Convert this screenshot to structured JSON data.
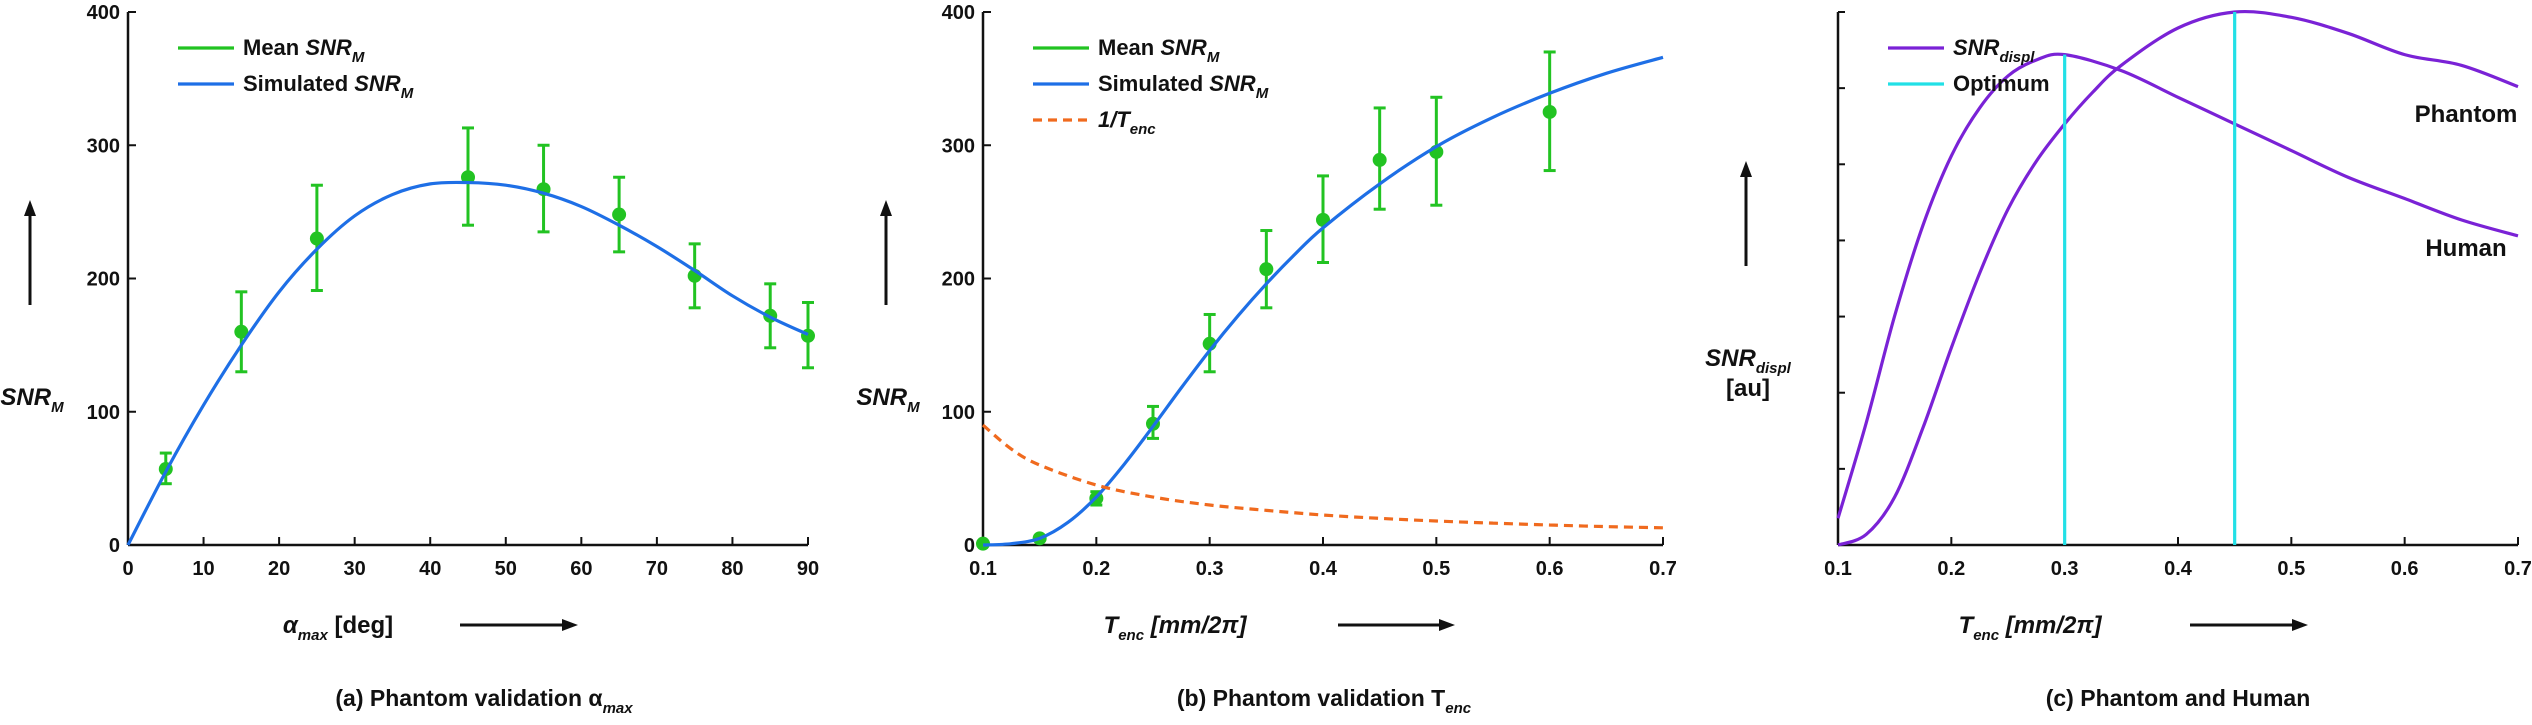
{
  "colors": {
    "measured": "#22c322",
    "simulated": "#1e6fe6",
    "inverse": "#f06a1e",
    "snr_displ": "#7a22d6",
    "optimum": "#22e0e6"
  },
  "chart_data": [
    {
      "type": "scatter",
      "caption": "(a) Phantom validation α",
      "caption_sub": "max",
      "xlabel_main": "α",
      "xlabel_sub": "max",
      "xlabel_rest": " [deg]",
      "ylabel_main": "SNR",
      "ylabel_sub": "M",
      "xlim": [
        0,
        90
      ],
      "ylim": [
        0,
        400
      ],
      "xticks": [
        0,
        10,
        20,
        30,
        40,
        50,
        60,
        70,
        80,
        90
      ],
      "yticks": [
        0,
        100,
        200,
        300,
        400
      ],
      "legend_position": "top-left",
      "series": [
        {
          "name": "Mean SNR",
          "name_sub": "M",
          "kind": "errorbar",
          "points": [
            {
              "x": 5,
              "y": 57,
              "lo": 46,
              "hi": 69
            },
            {
              "x": 15,
              "y": 160,
              "lo": 130,
              "hi": 190
            },
            {
              "x": 25,
              "y": 230,
              "lo": 191,
              "hi": 270
            },
            {
              "x": 45,
              "y": 276,
              "lo": 240,
              "hi": 313
            },
            {
              "x": 55,
              "y": 267,
              "lo": 235,
              "hi": 300
            },
            {
              "x": 65,
              "y": 248,
              "lo": 220,
              "hi": 276
            },
            {
              "x": 75,
              "y": 202,
              "lo": 178,
              "hi": 226
            },
            {
              "x": 85,
              "y": 172,
              "lo": 148,
              "hi": 196
            },
            {
              "x": 90,
              "y": 157,
              "lo": 133,
              "hi": 182
            }
          ]
        },
        {
          "name": "Simulated SNR",
          "name_sub": "M",
          "kind": "line",
          "x": [
            0,
            5,
            10,
            15,
            20,
            25,
            30,
            35,
            40,
            45,
            50,
            55,
            60,
            65,
            70,
            75,
            80,
            85,
            90
          ],
          "y": [
            0,
            55,
            105,
            150,
            190,
            222,
            247,
            263,
            271,
            272,
            270,
            264,
            254,
            240,
            224,
            206,
            187,
            171,
            158
          ]
        }
      ]
    },
    {
      "type": "scatter",
      "caption": "(b) Phantom validation T",
      "caption_sub": "enc",
      "xlabel_main": "T",
      "xlabel_sub": "enc",
      "xlabel_rest": " [mm/2π]",
      "ylabel_main": "SNR",
      "ylabel_sub": "M",
      "xlim": [
        0.1,
        0.7
      ],
      "ylim": [
        0,
        400
      ],
      "xticks": [
        "0.1",
        "0.2",
        "0.3",
        "0.4",
        "0.5",
        "0.6",
        "0.7"
      ],
      "yticks": [
        0,
        100,
        200,
        300,
        400
      ],
      "legend_position": "top-left",
      "series": [
        {
          "name": "Mean SNR",
          "name_sub": "M",
          "kind": "errorbar",
          "points": [
            {
              "x": 0.1,
              "y": 1,
              "lo": 1,
              "hi": 1
            },
            {
              "x": 0.15,
              "y": 5,
              "lo": 5,
              "hi": 5
            },
            {
              "x": 0.2,
              "y": 35,
              "lo": 30,
              "hi": 40
            },
            {
              "x": 0.25,
              "y": 91,
              "lo": 80,
              "hi": 104
            },
            {
              "x": 0.3,
              "y": 151,
              "lo": 130,
              "hi": 173
            },
            {
              "x": 0.35,
              "y": 207,
              "lo": 178,
              "hi": 236
            },
            {
              "x": 0.4,
              "y": 244,
              "lo": 212,
              "hi": 277
            },
            {
              "x": 0.45,
              "y": 289,
              "lo": 252,
              "hi": 328
            },
            {
              "x": 0.5,
              "y": 295,
              "lo": 255,
              "hi": 336
            },
            {
              "x": 0.6,
              "y": 325,
              "lo": 281,
              "hi": 370
            }
          ]
        },
        {
          "name": "Simulated SNR",
          "name_sub": "M",
          "kind": "line",
          "x": [
            0.1,
            0.125,
            0.15,
            0.175,
            0.2,
            0.225,
            0.25,
            0.275,
            0.3,
            0.325,
            0.35,
            0.375,
            0.4,
            0.45,
            0.5,
            0.55,
            0.6,
            0.65,
            0.7
          ],
          "y": [
            0,
            1,
            5,
            17,
            36,
            61,
            89,
            118,
            146,
            172,
            196,
            218,
            238,
            271,
            299,
            321,
            339,
            354,
            366
          ]
        },
        {
          "name": "1/T",
          "name_sub": "enc",
          "kind": "dashed",
          "x": [
            0.1,
            0.125,
            0.15,
            0.2,
            0.25,
            0.3,
            0.35,
            0.4,
            0.45,
            0.5,
            0.55,
            0.6,
            0.65,
            0.7
          ],
          "y": [
            90,
            72,
            60,
            45,
            36,
            30,
            26,
            22.5,
            20,
            18,
            16.4,
            15,
            13.8,
            12.9
          ]
        }
      ]
    },
    {
      "type": "line",
      "caption": "(c) Phantom and Human",
      "caption_sub": "",
      "xlabel_main": "T",
      "xlabel_sub": "enc",
      "xlabel_rest": " [mm/2π]",
      "ylabel_main": "SNR",
      "ylabel_sub": "displ",
      "ylabel_line2": "[au]",
      "xlim": [
        0.1,
        0.7
      ],
      "ylim": [
        0,
        1
      ],
      "xticks": [
        "0.1",
        "0.2",
        "0.3",
        "0.4",
        "0.5",
        "0.6",
        "0.7"
      ],
      "yticks": [],
      "legend_position": "top-left",
      "annotations": [
        "Phantom",
        "Human"
      ],
      "series": [
        {
          "name": "SNR",
          "name_sub": "displ",
          "kind": "line",
          "label": "Human",
          "x": [
            0.1,
            0.125,
            0.15,
            0.175,
            0.2,
            0.225,
            0.25,
            0.275,
            0.3,
            0.35,
            0.4,
            0.45,
            0.5,
            0.55,
            0.6,
            0.65,
            0.7
          ],
          "y": [
            0.05,
            0.23,
            0.43,
            0.6,
            0.73,
            0.82,
            0.88,
            0.91,
            0.92,
            0.89,
            0.84,
            0.79,
            0.74,
            0.69,
            0.65,
            0.61,
            0.58
          ]
        },
        {
          "name": "SNR",
          "name_sub": "displ",
          "kind": "line",
          "label": "Phantom",
          "x": [
            0.1,
            0.125,
            0.15,
            0.175,
            0.2,
            0.225,
            0.25,
            0.275,
            0.3,
            0.325,
            0.35,
            0.4,
            0.45,
            0.5,
            0.55,
            0.6,
            0.65,
            0.7
          ],
          "y": [
            0,
            0.02,
            0.09,
            0.22,
            0.37,
            0.51,
            0.63,
            0.72,
            0.79,
            0.85,
            0.9,
            0.97,
            1.0,
            0.99,
            0.96,
            0.92,
            0.9,
            0.86
          ]
        },
        {
          "name": "Optimum",
          "kind": "vlines",
          "x": [
            0.3,
            0.45
          ],
          "y": [
            0.92,
            1.0
          ]
        }
      ]
    }
  ]
}
